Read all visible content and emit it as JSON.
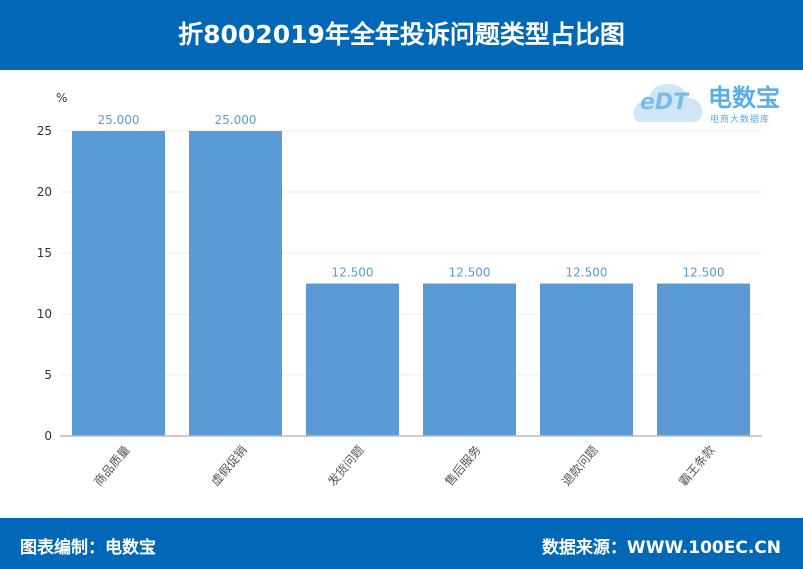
{
  "header": {
    "title": "折8002019年全年投诉问题类型占比图"
  },
  "footer": {
    "left": "图表编制：电数宝",
    "right": "数据来源：WWW.100EC.CN"
  },
  "logo": {
    "name": "电数宝",
    "sub": "电商大数据库",
    "mark": "eDT"
  },
  "chart_data": {
    "type": "bar",
    "title": "折8002019年全年投诉问题类型占比图",
    "ylabel": "%",
    "categories": [
      "商品质量",
      "虚假促销",
      "发货问题",
      "售后服务",
      "退款问题",
      "霸王条款"
    ],
    "values": [
      25.0,
      25.0,
      12.5,
      12.5,
      12.5,
      12.5
    ],
    "data_labels": [
      "25.000",
      "25.000",
      "12.500",
      "12.500",
      "12.500",
      "12.500"
    ],
    "ylim": [
      0,
      25
    ],
    "yticks": [
      0,
      5,
      10,
      15,
      20,
      25
    ],
    "grid": true,
    "bar_color": "#5b9bd5"
  }
}
